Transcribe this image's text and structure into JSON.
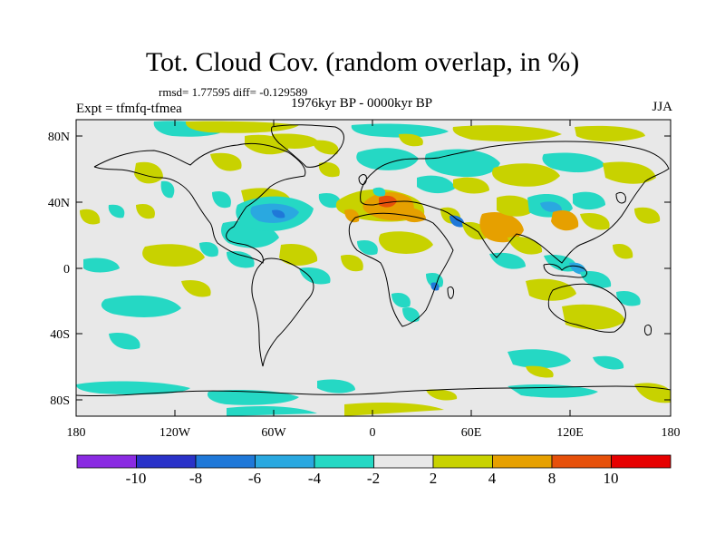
{
  "title": "Tot. Cloud Cov. (random overlap, in %)",
  "stats_line": "rmsd= 1.77595  diff= -0.129589",
  "experiment": "Expt = tfmfq-tfmea",
  "period": "1976kyr BP - 0000kyr BP",
  "season": "JJA",
  "x_ticks": [
    "180",
    "120W",
    "60W",
    "0",
    "60E",
    "120E",
    "180"
  ],
  "y_ticks": [
    "80N",
    "40N",
    "0",
    "40S",
    "80S"
  ],
  "colorbar": {
    "colors": [
      "#8a2be2",
      "#2a32c8",
      "#1f78d8",
      "#2aa8e0",
      "#25d8c4",
      "#e8e8e8",
      "#c8d200",
      "#e6a000",
      "#e6500a",
      "#e60000"
    ],
    "labels": [
      "-10",
      "-8",
      "-6",
      "-4",
      "-2",
      "2",
      "4",
      "8",
      "10"
    ]
  }
}
